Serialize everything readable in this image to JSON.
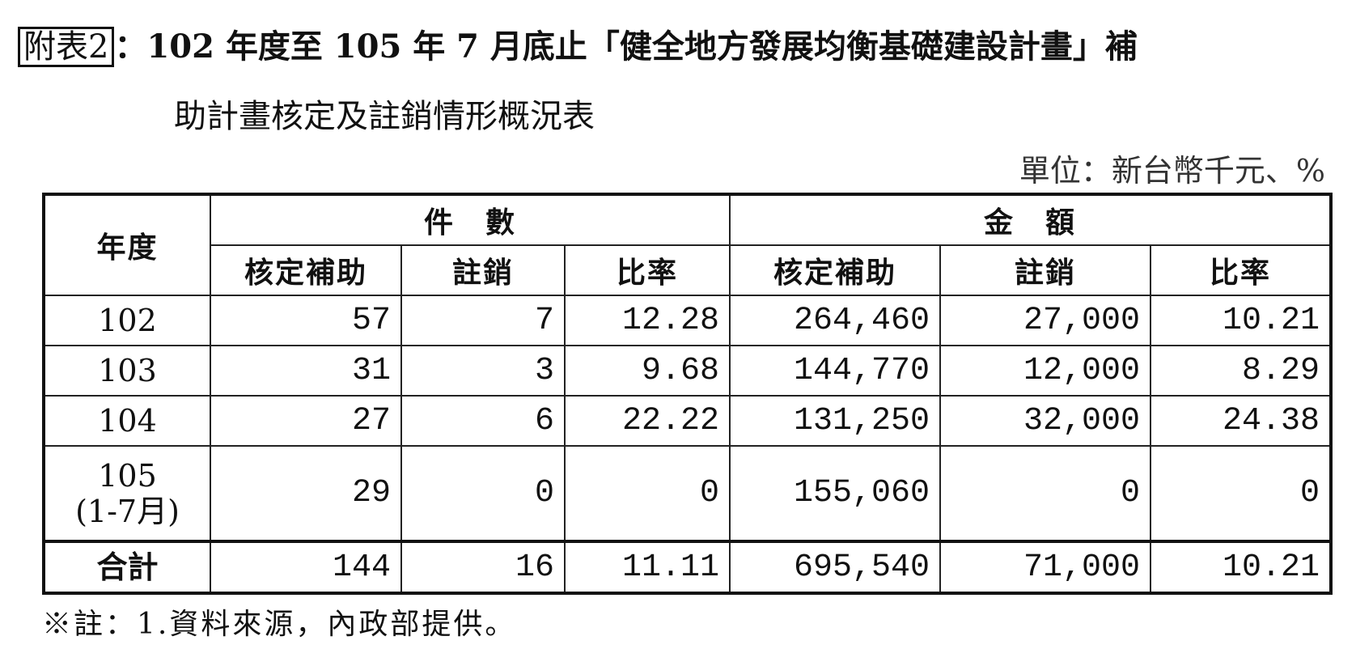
{
  "title": {
    "label": "附表2",
    "line1": "：102 年度至 105 年 7 月底止「健全地方發展均衡基礎建設計畫」補",
    "line2": "助計畫核定及註銷情形概況表"
  },
  "unit": "單位：新台幣千元、%",
  "table": {
    "year_header": "年度",
    "group_count": "件　數",
    "group_amount": "金　額",
    "sub_headers": [
      "核定補助",
      "註銷",
      "比率",
      "核定補助",
      "註銷",
      "比率"
    ],
    "rows": [
      {
        "year": "102",
        "year2": "",
        "cells": [
          "57",
          "7",
          "12.28",
          "264,460",
          "27,000",
          "10.21"
        ]
      },
      {
        "year": "103",
        "year2": "",
        "cells": [
          "31",
          "3",
          "9.68",
          "144,770",
          "12,000",
          "8.29"
        ]
      },
      {
        "year": "104",
        "year2": "",
        "cells": [
          "27",
          "6",
          "22.22",
          "131,250",
          "32,000",
          "24.38"
        ]
      },
      {
        "year": "105",
        "year2": "(1-7月)",
        "cells": [
          "29",
          "0",
          "0",
          "155,060",
          "0",
          "0"
        ]
      }
    ],
    "total": {
      "label": "合計",
      "cells": [
        "144",
        "16",
        "11.11",
        "695,540",
        "71,000",
        "10.21"
      ]
    }
  },
  "note": "※註：1.資料來源，內政部提供。"
}
